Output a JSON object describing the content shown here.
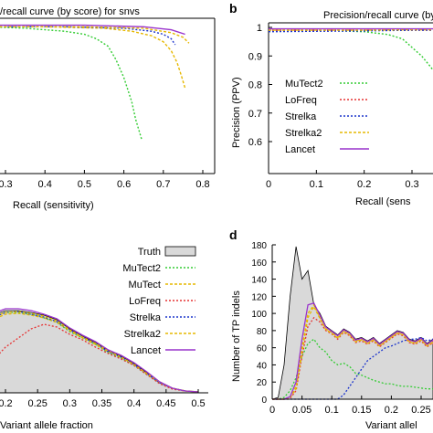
{
  "panels": {
    "b": "b",
    "d": "d"
  },
  "chart_data": [
    {
      "id": "a",
      "type": "line",
      "title": "/recall curve (by score) for snvs",
      "xlabel": "Recall (sensitivity)",
      "ylabel": "",
      "xlim": [
        0.25,
        0.8
      ],
      "ylim": [
        0.5,
        1.0
      ],
      "xticks": [
        "0.3",
        "0.4",
        "0.5",
        "0.6",
        "0.7",
        "0.8"
      ],
      "grid": false,
      "series": [
        {
          "name": "MuTect2",
          "color": "#33cc33",
          "dash": "2,2",
          "x": [
            0.25,
            0.35,
            0.45,
            0.5,
            0.53,
            0.56,
            0.58,
            0.6,
            0.62,
            0.63,
            0.645
          ],
          "y": [
            0.99,
            0.985,
            0.975,
            0.965,
            0.95,
            0.925,
            0.88,
            0.82,
            0.74,
            0.68,
            0.615
          ]
        },
        {
          "name": "Strelka2",
          "color": "#e6b800",
          "dash": "3,2",
          "x": [
            0.25,
            0.4,
            0.55,
            0.62,
            0.67,
            0.7,
            0.72,
            0.735,
            0.745,
            0.755
          ],
          "y": [
            0.99,
            0.99,
            0.985,
            0.975,
            0.96,
            0.94,
            0.91,
            0.87,
            0.83,
            0.785
          ]
        },
        {
          "name": "Strelka",
          "color": "#1a33cc",
          "dash": "2,2",
          "x": [
            0.25,
            0.45,
            0.6,
            0.67,
            0.7,
            0.72,
            0.73
          ],
          "y": [
            0.99,
            0.99,
            0.985,
            0.975,
            0.965,
            0.95,
            0.93
          ]
        },
        {
          "name": "MuTect",
          "color": "#e6b800",
          "dash": "3,2",
          "x": [
            0.25,
            0.5,
            0.65,
            0.72,
            0.75,
            0.765
          ],
          "y": [
            0.99,
            0.99,
            0.985,
            0.97,
            0.955,
            0.935
          ]
        },
        {
          "name": "Lancet",
          "color": "#9933cc",
          "dash": "",
          "x": [
            0.25,
            0.5,
            0.65,
            0.72,
            0.755
          ],
          "y": [
            0.995,
            0.995,
            0.99,
            0.98,
            0.965
          ]
        }
      ]
    },
    {
      "id": "b",
      "type": "line",
      "title": "Precision/recall curve (by",
      "xlabel": "Recall (sens",
      "ylabel": "Precision (PPV)",
      "xlim": [
        0,
        0.35
      ],
      "ylim": [
        0.5,
        1.0
      ],
      "xticks": [
        "0",
        "0.1",
        "0.2",
        "0.3"
      ],
      "yticks": [
        "0.6",
        "0.7",
        "0.8",
        "0.9",
        "1"
      ],
      "legend_position": "center-left",
      "grid": false,
      "series": [
        {
          "name": "MuTect2",
          "color": "#33cc33",
          "dash": "2,2",
          "x": [
            0,
            0.1,
            0.2,
            0.25,
            0.28,
            0.3,
            0.32,
            0.33,
            0.34,
            0.345
          ],
          "y": [
            0.99,
            0.99,
            0.985,
            0.975,
            0.96,
            0.93,
            0.9,
            0.88,
            0.86,
            0.85
          ]
        },
        {
          "name": "LoFreq",
          "color": "#e63333",
          "dash": "2,2",
          "x": [
            0,
            0.2,
            0.3,
            0.345
          ],
          "y": [
            0.99,
            0.99,
            0.99,
            0.99
          ]
        },
        {
          "name": "Strelka",
          "color": "#1a33cc",
          "dash": "2,2",
          "x": [
            0,
            0.2,
            0.3,
            0.345
          ],
          "y": [
            0.985,
            0.988,
            0.99,
            0.99
          ]
        },
        {
          "name": "Strelka2",
          "color": "#e6b800",
          "dash": "3,2",
          "x": [
            0,
            0.2,
            0.3,
            0.345
          ],
          "y": [
            0.99,
            0.99,
            0.992,
            0.992
          ]
        },
        {
          "name": "Lancet",
          "color": "#9933cc",
          "dash": "",
          "x": [
            0,
            0.2,
            0.3,
            0.345
          ],
          "y": [
            0.995,
            0.995,
            0.995,
            0.995
          ]
        }
      ]
    },
    {
      "id": "c",
      "type": "area",
      "title": "",
      "xlabel": "Variant allele fraction",
      "ylabel": "",
      "xlim": [
        0.16,
        0.5
      ],
      "ylim": [
        0,
        200
      ],
      "xticks": [
        "0.2",
        "0.25",
        "0.3",
        "0.35",
        "0.4",
        "0.45",
        "0.5"
      ],
      "legend_position": "top-right",
      "grid": false,
      "x": [
        0.16,
        0.18,
        0.2,
        0.22,
        0.24,
        0.26,
        0.28,
        0.3,
        0.32,
        0.34,
        0.36,
        0.38,
        0.4,
        0.42,
        0.44,
        0.46,
        0.48,
        0.5
      ],
      "series": [
        {
          "name": "Truth",
          "color": "#d9d9d9",
          "values": [
            80,
            85,
            90,
            90,
            88,
            85,
            80,
            70,
            62,
            55,
            46,
            40,
            32,
            22,
            12,
            5,
            2,
            1
          ]
        },
        {
          "name": "MuTect2",
          "color": "#33cc33",
          "dash": "2,2",
          "values": [
            78,
            83,
            88,
            88,
            86,
            82,
            77,
            67,
            60,
            53,
            44,
            38,
            30,
            20,
            11,
            5,
            2,
            1
          ]
        },
        {
          "name": "MuTect",
          "color": "#e6b800",
          "dash": "3,2",
          "values": [
            72,
            80,
            86,
            87,
            85,
            82,
            77,
            68,
            60,
            53,
            45,
            39,
            31,
            21,
            11,
            5,
            2,
            1
          ]
        },
        {
          "name": "LoFreq",
          "color": "#e63333",
          "dash": "2,2",
          "values": [
            25,
            35,
            50,
            60,
            70,
            75,
            72,
            64,
            58,
            50,
            43,
            37,
            30,
            20,
            10,
            4,
            2,
            1
          ]
        },
        {
          "name": "Strelka",
          "color": "#1a33cc",
          "dash": "2,2",
          "values": [
            75,
            82,
            88,
            89,
            86,
            83,
            78,
            69,
            61,
            54,
            45,
            39,
            31,
            21,
            11,
            5,
            2,
            1
          ]
        },
        {
          "name": "Strelka2",
          "color": "#e6b800",
          "dash": "3,2",
          "values": [
            76,
            83,
            88,
            89,
            87,
            84,
            79,
            69,
            61,
            54,
            46,
            39,
            31,
            21,
            12,
            5,
            2,
            1
          ]
        },
        {
          "name": "Lancet",
          "color": "#9933cc",
          "dash": "",
          "values": [
            82,
            87,
            92,
            92,
            90,
            86,
            81,
            71,
            63,
            56,
            47,
            41,
            33,
            23,
            12,
            5,
            2,
            1
          ]
        }
      ]
    },
    {
      "id": "d",
      "type": "area",
      "title": "",
      "xlabel": "Variant allel",
      "ylabel": "Number of TP indels",
      "xlim": [
        0,
        0.28
      ],
      "ylim": [
        0,
        180
      ],
      "xticks": [
        "0",
        "0.05",
        "0.1",
        "0.15",
        "0.2",
        "0.25"
      ],
      "yticks": [
        "0",
        "20",
        "40",
        "60",
        "80",
        "100",
        "120",
        "140",
        "160",
        "180"
      ],
      "grid": false,
      "x": [
        0,
        0.01,
        0.02,
        0.03,
        0.04,
        0.05,
        0.06,
        0.07,
        0.08,
        0.09,
        0.1,
        0.11,
        0.12,
        0.13,
        0.14,
        0.15,
        0.16,
        0.17,
        0.18,
        0.19,
        0.2,
        0.21,
        0.22,
        0.23,
        0.24,
        0.25,
        0.26,
        0.27,
        0.28
      ],
      "series": [
        {
          "name": "Truth",
          "color": "#d9d9d9",
          "values": [
            0,
            2,
            40,
            120,
            178,
            140,
            150,
            110,
            100,
            85,
            80,
            75,
            82,
            78,
            70,
            72,
            68,
            72,
            65,
            70,
            75,
            80,
            78,
            70,
            68,
            72,
            65,
            70,
            68
          ]
        },
        {
          "name": "MuTect2",
          "color": "#33cc33",
          "dash": "2,2",
          "values": [
            0,
            0,
            2,
            10,
            25,
            50,
            65,
            70,
            60,
            55,
            45,
            40,
            42,
            38,
            30,
            28,
            25,
            22,
            20,
            18,
            18,
            16,
            15,
            15,
            14,
            13,
            12,
            12,
            11
          ]
        },
        {
          "name": "MuTect",
          "color": "#e6b800",
          "dash": "3,2",
          "values": [
            0,
            0,
            0,
            2,
            15,
            60,
            100,
            110,
            95,
            82,
            78,
            72,
            80,
            76,
            68,
            70,
            66,
            70,
            63,
            68,
            73,
            78,
            76,
            68,
            66,
            70,
            63,
            68,
            66
          ]
        },
        {
          "name": "LoFreq",
          "color": "#e63333",
          "dash": "2,2",
          "values": [
            0,
            0,
            0,
            1,
            10,
            50,
            85,
            95,
            90,
            80,
            76,
            70,
            78,
            74,
            66,
            68,
            64,
            68,
            61,
            66,
            71,
            76,
            74,
            66,
            64,
            68,
            61,
            66,
            64
          ]
        },
        {
          "name": "Strelka",
          "color": "#1a33cc",
          "dash": "2,2",
          "values": [
            0,
            0,
            0,
            0,
            0,
            0,
            0,
            0,
            0,
            0,
            0,
            0,
            5,
            15,
            25,
            35,
            45,
            50,
            55,
            60,
            62,
            65,
            68,
            70,
            70,
            72,
            68,
            70,
            68
          ]
        },
        {
          "name": "Strelka2",
          "color": "#e6b800",
          "dash": "3,2",
          "values": [
            0,
            0,
            0,
            2,
            12,
            55,
            95,
            108,
            94,
            81,
            77,
            71,
            79,
            75,
            67,
            69,
            65,
            69,
            62,
            67,
            72,
            77,
            75,
            67,
            65,
            69,
            62,
            67,
            65
          ]
        },
        {
          "name": "Lancet",
          "color": "#9933cc",
          "dash": "",
          "values": [
            0,
            0,
            0,
            3,
            20,
            70,
            110,
            112,
            98,
            84,
            79,
            74,
            81,
            77,
            69,
            71,
            67,
            71,
            64,
            69,
            74,
            79,
            77,
            69,
            67,
            71,
            64,
            69,
            67
          ]
        }
      ]
    }
  ]
}
